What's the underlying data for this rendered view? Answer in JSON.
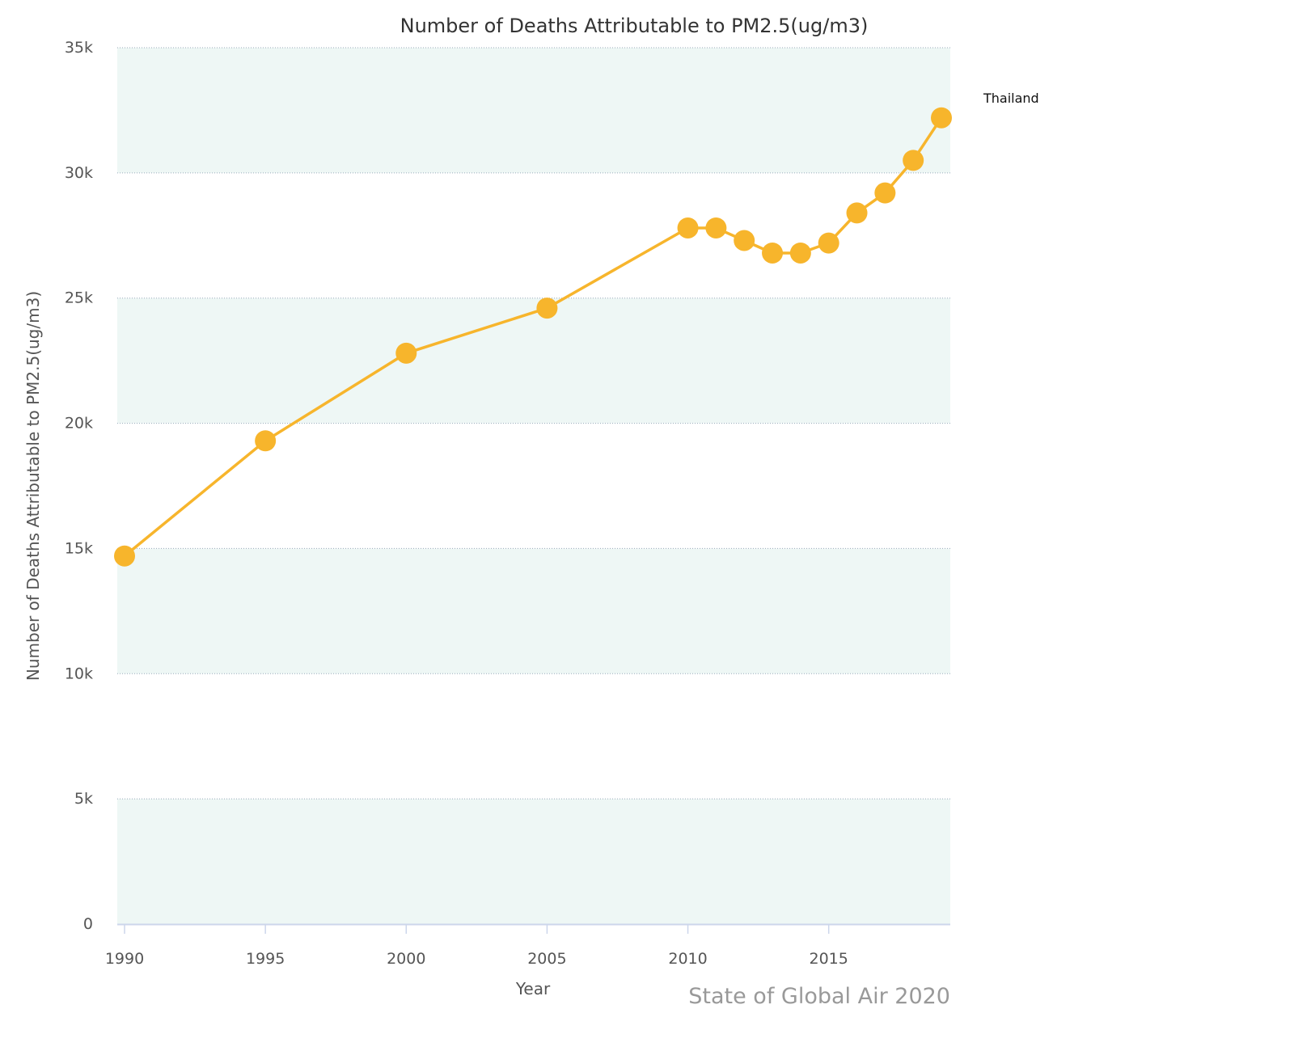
{
  "chart_data": {
    "type": "line",
    "title": "Number of Deaths Attributable to PM2.5(ug/m3)",
    "xlabel": "Year",
    "ylabel": "Number of Deaths Attributable to PM2.5(ug/m3)",
    "credit": "State of Global Air 2020",
    "xlim": [
      1990,
      2019
    ],
    "ylim": [
      0,
      35000
    ],
    "x_ticks": [
      "1990",
      "1995",
      "2000",
      "2005",
      "2010",
      "2015"
    ],
    "y_ticks": [
      "0",
      "5k",
      "10k",
      "15k",
      "20k",
      "25k",
      "30k",
      "35k"
    ],
    "grid": true,
    "legend_placement": "right",
    "series": [
      {
        "name": "Thailand",
        "color": "#f7b52c",
        "x": [
          1990,
          1995,
          2000,
          2005,
          2010,
          2011,
          2012,
          2013,
          2014,
          2015,
          2016,
          2017,
          2018,
          2019
        ],
        "values": [
          14700,
          19300,
          22800,
          24600,
          27800,
          27800,
          27300,
          26800,
          26800,
          27200,
          28400,
          29200,
          30500,
          32200
        ]
      }
    ],
    "band_color": "#eef7f5"
  }
}
